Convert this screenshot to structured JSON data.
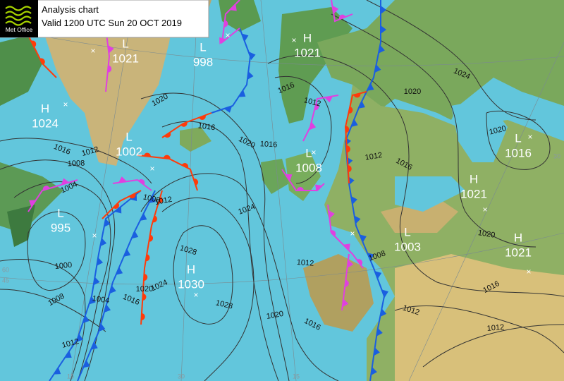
{
  "header": {
    "logo": "Met Office",
    "title": "Analysis chart",
    "valid": "Valid 1200 UTC Sun 20 OCT 2019"
  },
  "centers": [
    {
      "kind": "L",
      "pressure": "1021"
    },
    {
      "kind": "L",
      "pressure": "998"
    },
    {
      "kind": "H",
      "pressure": "1021"
    },
    {
      "kind": "H",
      "pressure": "1024"
    },
    {
      "kind": "L",
      "pressure": "1002"
    },
    {
      "kind": "L",
      "pressure": "1008"
    },
    {
      "kind": "L",
      "pressure": "995"
    },
    {
      "kind": "H",
      "pressure": "1030"
    },
    {
      "kind": "L",
      "pressure": "1003"
    },
    {
      "kind": "H",
      "pressure": "1021"
    },
    {
      "kind": "L",
      "pressure": "1016"
    },
    {
      "kind": "H",
      "pressure": "1021"
    }
  ],
  "isobar_labels": [
    "1020",
    "1016",
    "1012",
    "1016",
    "1008",
    "1004",
    "1008",
    "1012",
    "1020",
    "1016",
    "1024",
    "1028",
    "1000",
    "1008",
    "1004",
    "1012",
    "1016",
    "1020",
    "1024",
    "1028",
    "1020",
    "1016",
    "1012",
    "1008",
    "1012",
    "1012",
    "1016",
    "1020",
    "1020",
    "1024",
    "1020",
    "1016",
    "1012",
    "1012",
    "1016"
  ],
  "graticule_labels": [
    "60",
    "45",
    "15",
    "30",
    "15",
    "30"
  ]
}
